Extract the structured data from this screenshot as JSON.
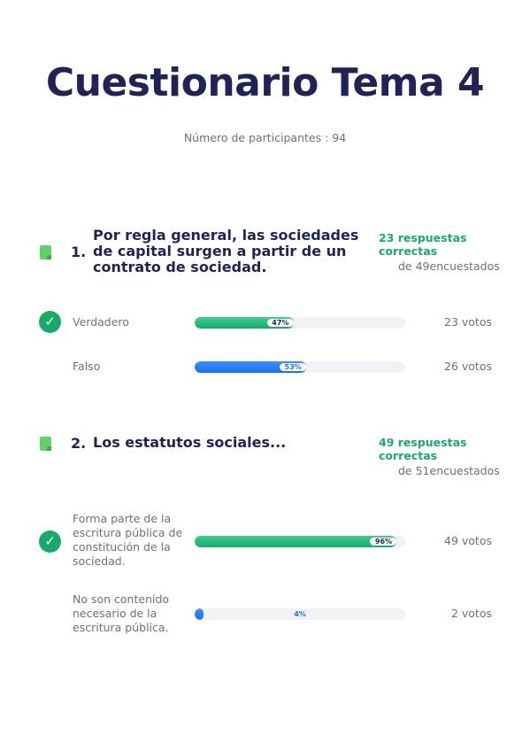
{
  "title": "Cuestionario Tema 4",
  "participants": "Número de participantes : 94",
  "questions": [
    {
      "number": "1.",
      "text": "Por regla general, las sociedades de capital surgen a partir de un contrato de sociedad.",
      "correct": "23 respuestas correctas",
      "surveyed": "de 49encuestados",
      "answers": [
        {
          "label": "Verdadero",
          "percent_label": "47%",
          "percent": 47,
          "votes": "23 votos",
          "correct": true,
          "color": "#1aa86b"
        },
        {
          "label": "Falso",
          "percent_label": "53%",
          "percent": 53,
          "votes": "26 votos",
          "correct": false,
          "color": "#1a6ff0"
        }
      ]
    },
    {
      "number": "2.",
      "text": "Los estatutos sociales...",
      "correct": "49 respuestas correctas",
      "surveyed": "de 51encuestados",
      "answers": [
        {
          "label": "Forma parte de la escritura pública de constitución de la sociedad.",
          "percent_label": "96%",
          "percent": 96,
          "votes": "49 votos",
          "correct": true,
          "color": "#1aa86b"
        },
        {
          "label": "No son contenido necesario de la escritura pública.",
          "percent_label": "4%",
          "percent": 4,
          "votes": "2 votos",
          "correct": false,
          "color": "#1a6ff0"
        }
      ]
    }
  ],
  "icons": {
    "question": "document-icon",
    "correct": "checkmark-circle-icon"
  }
}
